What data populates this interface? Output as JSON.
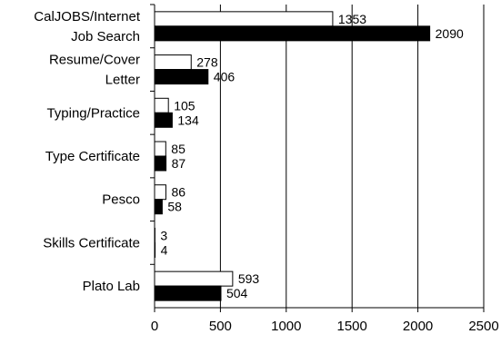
{
  "chart_data": {
    "type": "bar",
    "orientation": "horizontal",
    "title": "",
    "xlabel": "",
    "ylabel": "",
    "xlim": [
      0,
      2500
    ],
    "x_ticks": [
      0,
      500,
      1000,
      1500,
      2000,
      2500
    ],
    "grid": "vertical",
    "legend": "none",
    "categories": [
      [
        "CalJOBS/Internet",
        "Job Search"
      ],
      [
        "Resume/Cover",
        "Letter"
      ],
      [
        "Typing/Practice"
      ],
      [
        "Type Certificate"
      ],
      [
        "Pesco"
      ],
      [
        "Skills Certificate"
      ],
      [
        "Plato Lab"
      ]
    ],
    "series": [
      {
        "color": "#ffffff",
        "values": [
          1353,
          278,
          105,
          85,
          86,
          3,
          593
        ]
      },
      {
        "color": "#000000",
        "values": [
          2090,
          406,
          134,
          87,
          58,
          4,
          504
        ]
      }
    ]
  }
}
